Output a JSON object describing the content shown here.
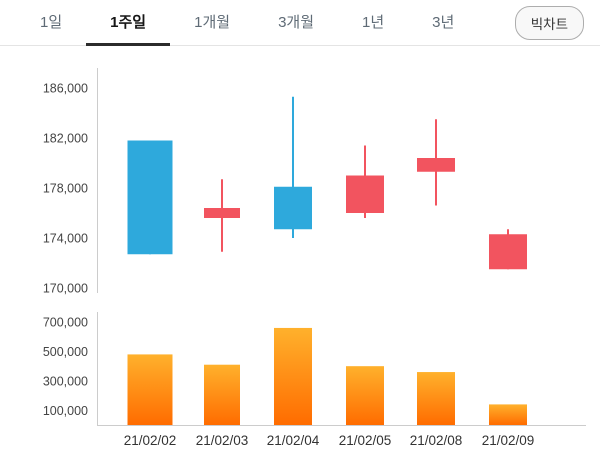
{
  "tabbar": {
    "tabs": [
      {
        "label": "1일",
        "active": false
      },
      {
        "label": "1주일",
        "active": true
      },
      {
        "label": "1개월",
        "active": false
      },
      {
        "label": "3개월",
        "active": false
      },
      {
        "label": "1년",
        "active": false
      },
      {
        "label": "3년",
        "active": false
      }
    ],
    "big_chart_label": "빅차트"
  },
  "chart_data": {
    "type": "candlestick",
    "title": "",
    "categories": [
      "21/02/02",
      "21/02/03",
      "21/02/04",
      "21/02/05",
      "21/02/08",
      "21/02/09"
    ],
    "candles": [
      {
        "open": 181800,
        "high": 181800,
        "low": 172700,
        "close": 172700,
        "direction": "down"
      },
      {
        "open": 175600,
        "high": 178700,
        "low": 172900,
        "close": 176400,
        "direction": "up"
      },
      {
        "open": 178100,
        "high": 185300,
        "low": 174000,
        "close": 174700,
        "direction": "down"
      },
      {
        "open": 176000,
        "high": 181400,
        "low": 175600,
        "close": 179000,
        "direction": "up"
      },
      {
        "open": 179300,
        "high": 183500,
        "low": 176600,
        "close": 180400,
        "direction": "up"
      },
      {
        "open": 171500,
        "high": 174700,
        "low": 171500,
        "close": 174300,
        "direction": "up"
      }
    ],
    "volumes": [
      480000,
      410000,
      660000,
      400000,
      360000,
      140000
    ],
    "price_axis": {
      "ticks": [
        186000,
        182000,
        178000,
        174000,
        170000
      ]
    },
    "volume_axis": {
      "ticks": [
        700000,
        500000,
        300000,
        100000
      ]
    },
    "grid": false,
    "legend_position": "none",
    "colors": {
      "up": "#f2545f",
      "down": "#2ea9dc",
      "volume_gradient_top": "#ffb12c",
      "volume_gradient_bottom": "#ff6c00",
      "axis_line": "#cccccc",
      "tick_text": "#444444",
      "date_text": "#333333"
    }
  }
}
